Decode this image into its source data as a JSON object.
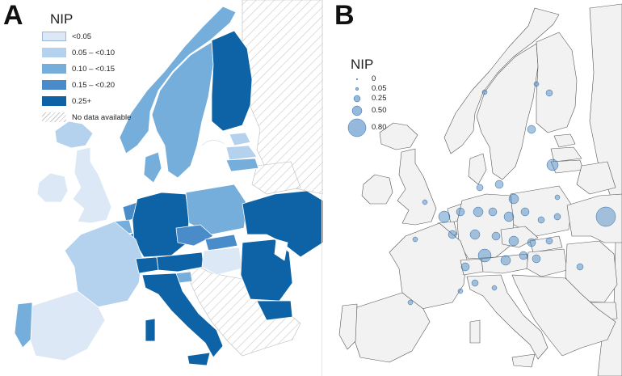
{
  "panels": {
    "a": {
      "letter": "A",
      "legend": {
        "title": "NIP",
        "items": [
          {
            "label": "<0.05",
            "color": "#dde8f6"
          },
          {
            "label": "0.05 – <0.10",
            "color": "#b4d1ed"
          },
          {
            "label": "0.10 – <0.15",
            "color": "#75aedb"
          },
          {
            "label": "0.15 – <0.20",
            "color": "#4a8bc9"
          },
          {
            "label": "0.25+",
            "color": "#0d63a5"
          },
          {
            "label": "No data available",
            "color": "hatched"
          }
        ]
      }
    },
    "b": {
      "letter": "B",
      "legend": {
        "title": "NIP",
        "items": [
          {
            "label": "0",
            "value": 0
          },
          {
            "label": "0.05",
            "value": 0.05
          },
          {
            "label": "0.25",
            "value": 0.25
          },
          {
            "label": "0.50",
            "value": 0.5
          },
          {
            "label": "0.80",
            "value": 0.8
          }
        ],
        "bubble_color": "#3d7fbf"
      }
    }
  }
}
